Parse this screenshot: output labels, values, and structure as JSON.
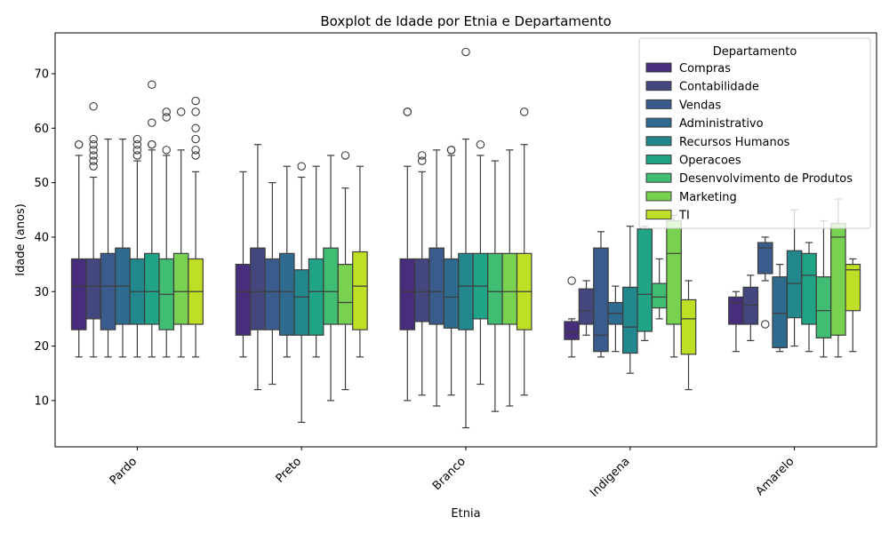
{
  "chart_data": {
    "type": "boxplot",
    "title": "Boxplot de Idade por Etnia e Departamento",
    "xlabel": "Etnia",
    "ylabel": "Idade (anos)",
    "ylim": [
      1.5,
      77.5
    ],
    "yticks": [
      10,
      20,
      30,
      40,
      50,
      60,
      70
    ],
    "grid": false,
    "legend_position": "top-right",
    "legend_title": "Departamento",
    "categories": [
      "Pardo",
      "Preto",
      "Branco",
      "Indigena",
      "Amarelo"
    ],
    "series": [
      {
        "name": "Compras",
        "color": "#472d7b",
        "boxes": [
          {
            "whislo": 18,
            "q1": 23,
            "med": 31,
            "q3": 36,
            "whishi": 55,
            "fliers": [
              57,
              57
            ]
          },
          {
            "whislo": 18,
            "q1": 22,
            "med": 30,
            "q3": 35,
            "whishi": 52,
            "fliers": []
          },
          {
            "whislo": 10,
            "q1": 23,
            "med": 30,
            "q3": 36,
            "whishi": 53,
            "fliers": [
              63,
              63
            ]
          },
          {
            "whislo": 18,
            "q1": 21.2,
            "med": 22.5,
            "q3": 24.5,
            "whishi": 25,
            "fliers": [
              32
            ]
          },
          {
            "whislo": 19,
            "q1": 24,
            "med": 28,
            "q3": 29,
            "whishi": 30,
            "fliers": []
          }
        ]
      },
      {
        "name": "Contabilidade",
        "color": "#44467e",
        "boxes": [
          {
            "whislo": 18,
            "q1": 25,
            "med": 31,
            "q3": 36,
            "whishi": 51,
            "fliers": [
              53,
              54,
              55,
              56,
              57,
              58,
              64
            ]
          },
          {
            "whislo": 12,
            "q1": 23,
            "med": 30,
            "q3": 38,
            "whishi": 57,
            "fliers": []
          },
          {
            "whislo": 11,
            "q1": 24.5,
            "med": 30,
            "q3": 36,
            "whishi": 52,
            "fliers": [
              54,
              55
            ]
          },
          {
            "whislo": 22,
            "q1": 24,
            "med": 26.5,
            "q3": 30.5,
            "whishi": 32,
            "fliers": []
          },
          {
            "whislo": 21,
            "q1": 24,
            "med": 27.5,
            "q3": 30.8,
            "whishi": 33,
            "fliers": []
          }
        ]
      },
      {
        "name": "Vendas",
        "color": "#3a5c8d",
        "boxes": [
          {
            "whislo": 18,
            "q1": 23,
            "med": 31,
            "q3": 37,
            "whishi": 58,
            "fliers": []
          },
          {
            "whislo": 13,
            "q1": 23,
            "med": 30,
            "q3": 36,
            "whishi": 50,
            "fliers": []
          },
          {
            "whislo": 9,
            "q1": 24,
            "med": 30,
            "q3": 38,
            "whishi": 56,
            "fliers": []
          },
          {
            "whislo": 18,
            "q1": 19,
            "med": 22,
            "q3": 38,
            "whishi": 41,
            "fliers": []
          },
          {
            "whislo": 32,
            "q1": 33.3,
            "med": 38,
            "q3": 39,
            "whishi": 40,
            "fliers": [
              24
            ]
          }
        ]
      },
      {
        "name": "Administrativo",
        "color": "#2e6b8e",
        "boxes": [
          {
            "whislo": 18,
            "q1": 24,
            "med": 31,
            "q3": 38,
            "whishi": 58,
            "fliers": []
          },
          {
            "whislo": 18,
            "q1": 22,
            "med": 30,
            "q3": 37,
            "whishi": 53,
            "fliers": []
          },
          {
            "whislo": 11,
            "q1": 23.3,
            "med": 29,
            "q3": 36,
            "whishi": 55,
            "fliers": [
              56,
              56
            ]
          },
          {
            "whislo": 19,
            "q1": 24,
            "med": 26,
            "q3": 28,
            "whishi": 31,
            "fliers": []
          },
          {
            "whislo": 19,
            "q1": 19.7,
            "med": 26,
            "q3": 32.7,
            "whishi": 35,
            "fliers": []
          }
        ]
      },
      {
        "name": "Recursos Humanos",
        "color": "#23888e",
        "boxes": [
          {
            "whislo": 18,
            "q1": 24,
            "med": 30,
            "q3": 36,
            "whishi": 54,
            "fliers": [
              55,
              56,
              57,
              58
            ]
          },
          {
            "whislo": 6,
            "q1": 22,
            "med": 29,
            "q3": 34,
            "whishi": 51,
            "fliers": [
              53
            ]
          },
          {
            "whislo": 5,
            "q1": 23,
            "med": 31,
            "q3": 37,
            "whishi": 58,
            "fliers": [
              74
            ]
          },
          {
            "whislo": 15,
            "q1": 18.7,
            "med": 23.5,
            "q3": 30.8,
            "whishi": 42,
            "fliers": []
          },
          {
            "whislo": 20,
            "q1": 25.2,
            "med": 31.5,
            "q3": 37.5,
            "whishi": 45,
            "fliers": []
          }
        ]
      },
      {
        "name": "Operacoes",
        "color": "#20a386",
        "boxes": [
          {
            "whislo": 18,
            "q1": 24,
            "med": 30,
            "q3": 37,
            "whishi": 56,
            "fliers": [
              57,
              57,
              61,
              68
            ]
          },
          {
            "whislo": 18,
            "q1": 22,
            "med": 30,
            "q3": 36,
            "whishi": 53,
            "fliers": []
          },
          {
            "whislo": 13,
            "q1": 25,
            "med": 31,
            "q3": 37,
            "whishi": 55,
            "fliers": [
              57
            ]
          },
          {
            "whislo": 21,
            "q1": 22.7,
            "med": 29.5,
            "q3": 41.5,
            "whishi": 42,
            "fliers": []
          },
          {
            "whislo": 19,
            "q1": 24,
            "med": 33,
            "q3": 37,
            "whishi": 39,
            "fliers": []
          }
        ]
      },
      {
        "name": "Desenvolvimento de Produtos",
        "color": "#40bd72",
        "boxes": [
          {
            "whislo": 18,
            "q1": 23,
            "med": 29.5,
            "q3": 36,
            "whishi": 55,
            "fliers": [
              56,
              62,
              63
            ]
          },
          {
            "whislo": 10,
            "q1": 24,
            "med": 30,
            "q3": 38,
            "whishi": 55,
            "fliers": []
          },
          {
            "whislo": 8,
            "q1": 24,
            "med": 30,
            "q3": 37,
            "whishi": 54,
            "fliers": []
          },
          {
            "whislo": 25,
            "q1": 27,
            "med": 29,
            "q3": 31.5,
            "whishi": 36,
            "fliers": []
          },
          {
            "whislo": 18,
            "q1": 21.5,
            "med": 26.5,
            "q3": 32.7,
            "whishi": 43,
            "fliers": []
          }
        ]
      },
      {
        "name": "Marketing",
        "color": "#78d151",
        "boxes": [
          {
            "whislo": 18,
            "q1": 24,
            "med": 30,
            "q3": 37,
            "whishi": 56,
            "fliers": [
              63
            ]
          },
          {
            "whislo": 12,
            "q1": 24,
            "med": 28,
            "q3": 35,
            "whishi": 49,
            "fliers": [
              55
            ]
          },
          {
            "whislo": 9,
            "q1": 24,
            "med": 30,
            "q3": 37,
            "whishi": 56,
            "fliers": []
          },
          {
            "whislo": 18,
            "q1": 24,
            "med": 37,
            "q3": 43,
            "whishi": 44,
            "fliers": []
          },
          {
            "whislo": 18,
            "q1": 22,
            "med": 40,
            "q3": 42.5,
            "whishi": 47,
            "fliers": []
          }
        ]
      },
      {
        "name": "TI",
        "color": "#bddf26",
        "boxes": [
          {
            "whislo": 18,
            "q1": 24,
            "med": 30,
            "q3": 36,
            "whishi": 52,
            "fliers": [
              55,
              56,
              58,
              60,
              63,
              65
            ]
          },
          {
            "whislo": 18,
            "q1": 23,
            "med": 31,
            "q3": 37.3,
            "whishi": 53,
            "fliers": []
          },
          {
            "whislo": 11,
            "q1": 23,
            "med": 30,
            "q3": 37,
            "whishi": 57,
            "fliers": [
              63
            ]
          },
          {
            "whislo": 12,
            "q1": 18.5,
            "med": 25,
            "q3": 28.5,
            "whishi": 32,
            "fliers": []
          },
          {
            "whislo": 19,
            "q1": 26.5,
            "med": 34,
            "q3": 35,
            "whishi": 36,
            "fliers": []
          }
        ]
      }
    ]
  }
}
